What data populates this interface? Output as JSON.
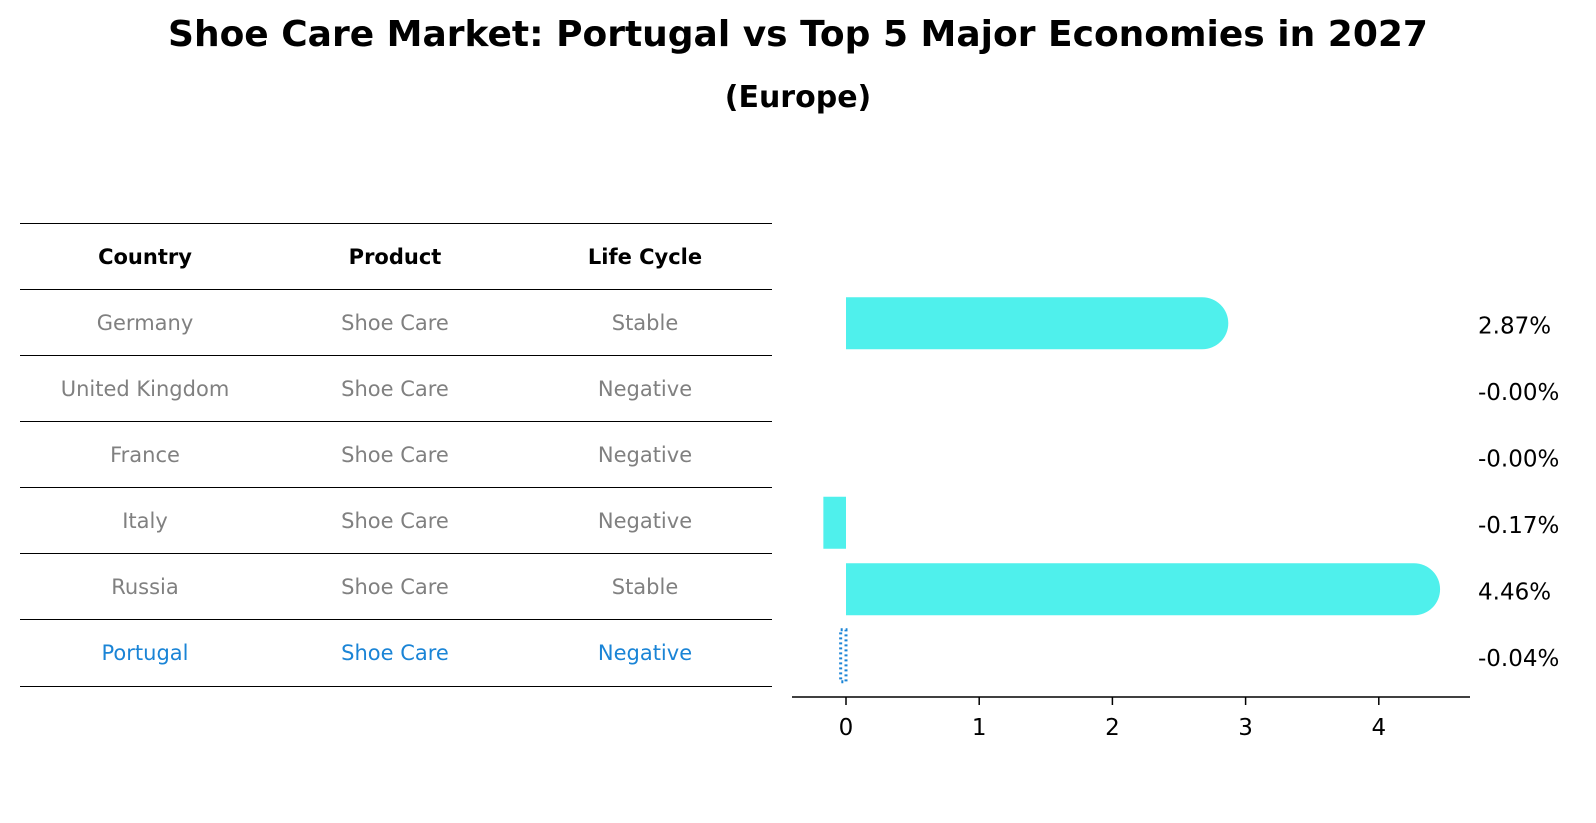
{
  "title": "Shoe Care Market: Portugal vs Top 5 Major Economies in 2027",
  "subtitle": "(Europe)",
  "colors": {
    "bar": "#4ff0ec",
    "highlight": "#1a84d6",
    "muted": "#808080",
    "axis": "#000000"
  },
  "table": {
    "headers": [
      "Country",
      "Product",
      "Life Cycle"
    ],
    "rows": [
      {
        "country": "Germany",
        "product": "Shoe Care",
        "life_cycle": "Stable"
      },
      {
        "country": "United Kingdom",
        "product": "Shoe Care",
        "life_cycle": "Negative"
      },
      {
        "country": "France",
        "product": "Shoe Care",
        "life_cycle": "Negative"
      },
      {
        "country": "Italy",
        "product": "Shoe Care",
        "life_cycle": "Negative"
      },
      {
        "country": "Russia",
        "product": "Shoe Care",
        "life_cycle": "Stable"
      },
      {
        "country": "Portugal",
        "product": "Shoe Care",
        "life_cycle": "Negative"
      }
    ]
  },
  "chart_data": {
    "type": "bar",
    "orientation": "horizontal",
    "categories": [
      "Germany",
      "United Kingdom",
      "France",
      "Italy",
      "Russia",
      "Portugal"
    ],
    "values": [
      2.87,
      -0.0,
      -0.0,
      -0.17,
      4.46,
      -0.04
    ],
    "value_labels": [
      "2.87%",
      "-0.00%",
      "-0.00%",
      "-0.17%",
      "4.46%",
      "-0.04%"
    ],
    "highlight": "Portugal",
    "xlim": [
      -0.4,
      4.7
    ],
    "xticks": [
      0,
      1,
      2,
      3,
      4
    ],
    "xtick_labels": [
      "0",
      "1",
      "2",
      "3",
      "4"
    ],
    "xlabel": "",
    "ylabel": "",
    "grid": false
  }
}
